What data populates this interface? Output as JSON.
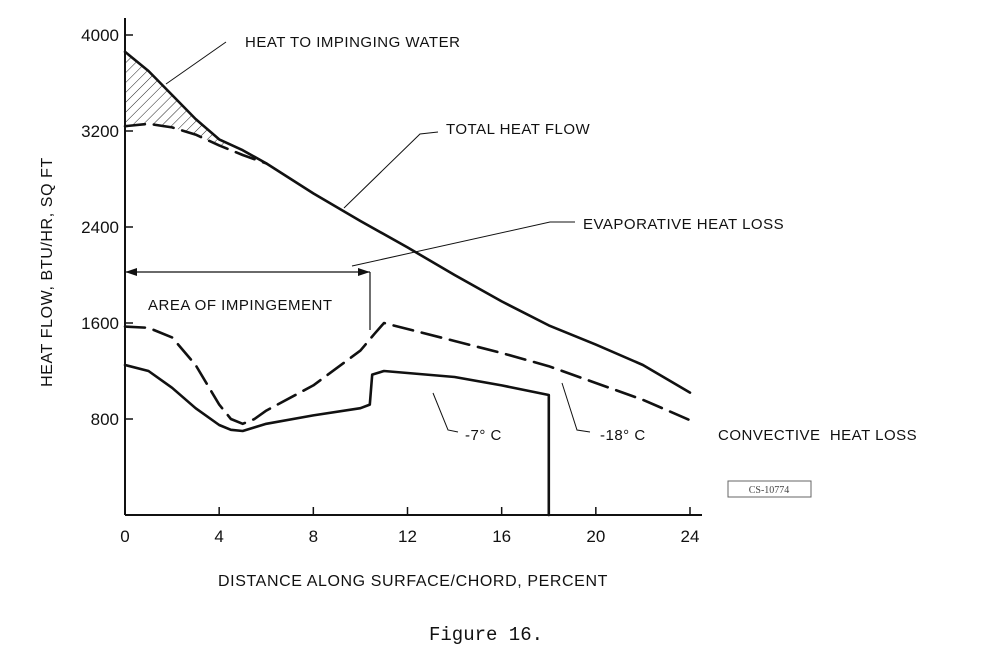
{
  "caption": "Figure 16.",
  "stamp": "CS-10774",
  "chart_data": {
    "type": "line",
    "xlabel": "DISTANCE ALONG SURFACE/CHORD, PERCENT",
    "ylabel": "HEAT FLOW, BTU/HR, SQ FT",
    "xlim": [
      0,
      24
    ],
    "ylim": [
      0,
      4000
    ],
    "xticks": [
      "0",
      "4",
      "8",
      "12",
      "16",
      "20",
      "24"
    ],
    "yticks": [
      "800",
      "1600",
      "2400",
      "3200",
      "4000"
    ],
    "grid": false,
    "series": [
      {
        "name": "TOTAL HEAT FLOW",
        "style": "solid",
        "x": [
          0,
          1,
          2,
          3,
          4,
          5,
          6,
          8,
          10,
          12,
          14,
          16,
          18,
          20,
          22,
          24
        ],
        "y": [
          3860,
          3700,
          3500,
          3300,
          3130,
          3040,
          2930,
          2680,
          2450,
          2230,
          2000,
          1780,
          1580,
          1420,
          1250,
          1020
        ]
      },
      {
        "name": "EVAPORATIVE HEAT LOSS",
        "style": "dashed",
        "x": [
          0,
          1,
          2,
          3,
          4,
          5,
          6
        ],
        "y": [
          3240,
          3260,
          3230,
          3170,
          3080,
          3000,
          2930
        ]
      },
      {
        "name": "-18° C",
        "style": "dashed",
        "x": [
          0,
          1,
          2,
          3,
          4,
          4.5,
          5,
          5.5,
          6,
          8,
          10,
          10.6,
          11,
          14,
          16,
          18,
          20,
          22,
          24
        ],
        "y": [
          1570,
          1560,
          1480,
          1250,
          920,
          800,
          760,
          800,
          870,
          1080,
          1370,
          1510,
          1600,
          1450,
          1350,
          1240,
          1100,
          960,
          790
        ]
      },
      {
        "name": "-7° C",
        "style": "solid",
        "x": [
          0,
          1,
          2,
          3,
          4,
          4.5,
          5,
          5.5,
          6,
          8,
          10,
          10.4,
          10.5,
          11,
          14,
          16,
          18,
          18,
          18
        ],
        "y": [
          1250,
          1200,
          1060,
          890,
          750,
          710,
          700,
          730,
          760,
          830,
          890,
          920,
          1170,
          1200,
          1150,
          1080,
          1000,
          820,
          0
        ]
      }
    ],
    "annotations": [
      {
        "text": "HEAT TO IMPINGING WATER",
        "hatched_region": "between total and evaporative curves, x 0–4.5"
      },
      {
        "text": "TOTAL HEAT FLOW"
      },
      {
        "text": "EVAPORATIVE HEAT LOSS"
      },
      {
        "text": "AREA OF IMPINGEMENT",
        "span_x": [
          0,
          10.5
        ]
      },
      {
        "text": "-7° C"
      },
      {
        "text": "-18° C"
      },
      {
        "text": "CONVECTIVE  HEAT LOSS"
      }
    ]
  }
}
